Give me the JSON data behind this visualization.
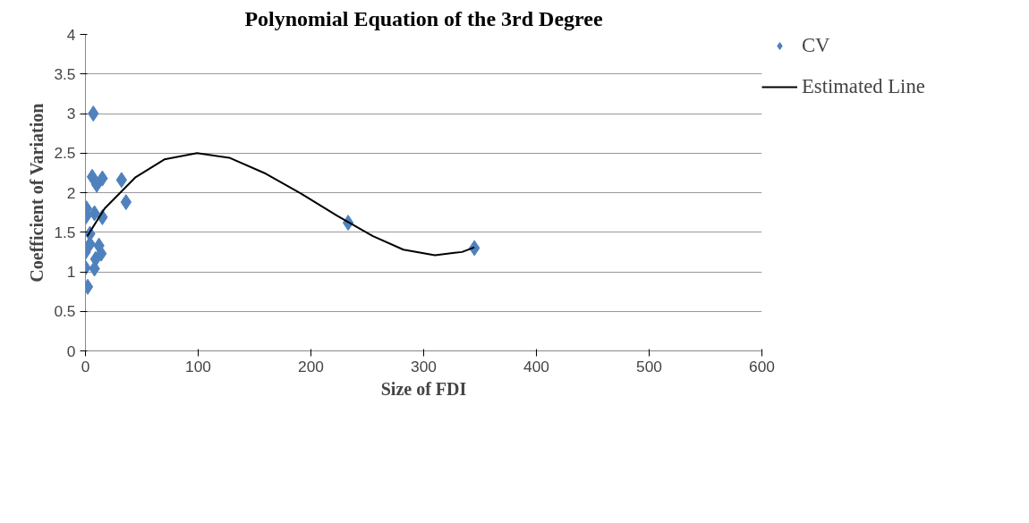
{
  "chart_data": {
    "type": "scatter",
    "title": "Polynomial Equation of the 3rd Degree",
    "xlabel": "Size of FDI",
    "ylabel": "Coefficient of Variation",
    "xlim": [
      0,
      600
    ],
    "xticks": [
      0,
      100,
      200,
      300,
      400,
      500,
      600
    ],
    "ylim": [
      0,
      4
    ],
    "yticks": [
      0,
      0.5,
      1,
      1.5,
      2,
      2.5,
      3,
      3.5,
      4
    ],
    "grid": "y",
    "legend": "right",
    "series": [
      {
        "name": "CV",
        "marker": "diamond",
        "color": "#4f81bd",
        "x": [
          7,
          6,
          15,
          10,
          32,
          36,
          1,
          0.5,
          8,
          15,
          4,
          4,
          12,
          0,
          14,
          9,
          0,
          8,
          2,
          233,
          345
        ],
        "values": [
          3.0,
          2.2,
          2.18,
          2.1,
          2.16,
          1.88,
          1.8,
          1.7,
          1.74,
          1.69,
          1.48,
          1.35,
          1.33,
          1.25,
          1.23,
          1.16,
          1.05,
          1.04,
          0.81,
          1.62,
          1.3
        ]
      },
      {
        "name": "Estimated Line",
        "type": "line",
        "color": "#000000",
        "marker": "none",
        "x": [
          1.6,
          17,
          44,
          70,
          99,
          128,
          160,
          191,
          223,
          255,
          282,
          310,
          334,
          345
        ],
        "values": [
          1.45,
          1.8,
          2.19,
          2.42,
          2.5,
          2.44,
          2.24,
          1.99,
          1.71,
          1.45,
          1.28,
          1.21,
          1.25,
          1.31
        ]
      }
    ]
  }
}
